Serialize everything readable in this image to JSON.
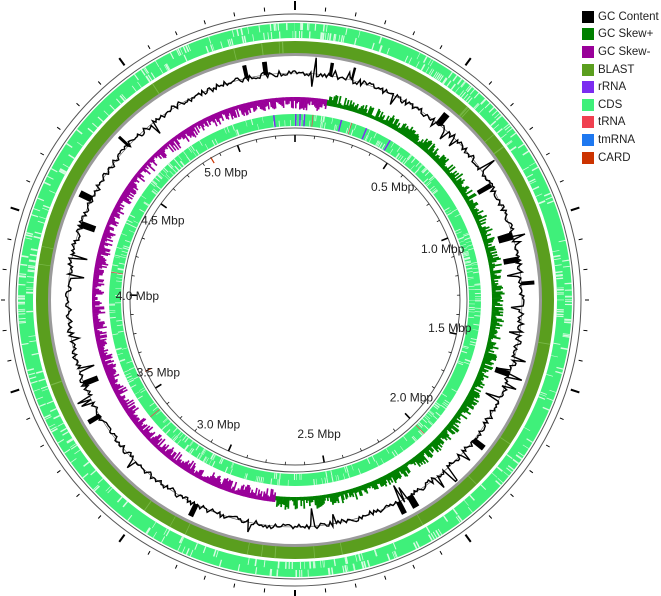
{
  "map": {
    "scale_labels": [
      "0.5 Mbp",
      "1.0 Mbp",
      "1.5 Mbp",
      "2.0 Mbp",
      "2.5 Mbp",
      "3.0 Mbp",
      "3.5 Mbp",
      "4.0 Mbp",
      "4.5 Mbp",
      "5.0 Mbp"
    ],
    "genome_length_mbp": 5.3
  },
  "legend": [
    {
      "label": "GC Content",
      "color": "#000000"
    },
    {
      "label": "GC Skew+",
      "color": "#008000"
    },
    {
      "label": "GC Skew-",
      "color": "#990099"
    },
    {
      "label": "BLAST",
      "color": "#5a9e1e"
    },
    {
      "label": "rRNA",
      "color": "#7b2cf0"
    },
    {
      "label": "CDS",
      "color": "#3ff07a"
    },
    {
      "label": "tRNA",
      "color": "#f04050"
    },
    {
      "label": "tmRNA",
      "color": "#1e78f0"
    },
    {
      "label": "CARD",
      "color": "#cc3300"
    }
  ],
  "colors": {
    "ring_outline": "#555555",
    "blast_shadow": "#9a9a9a",
    "cds_light": "#3ff07a",
    "cds_white": "#d8fbe2"
  },
  "tracks": {
    "gc_skew_switch_mbp": [
      0.13,
      2.73
    ],
    "rrna_positions_mbp": [
      0.0,
      0.02,
      0.04,
      0.21,
      0.33,
      0.45,
      5.2
    ],
    "trna_positions_mbp": [
      0.08,
      0.26,
      2.0,
      3.4,
      4.1
    ],
    "card_positions_mbp": [
      4.85,
      3.6
    ]
  }
}
